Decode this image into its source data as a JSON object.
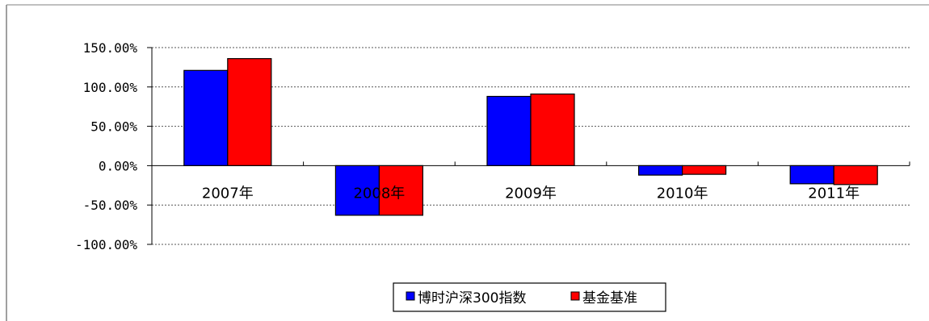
{
  "chart_data": {
    "type": "bar",
    "categories": [
      "2007年",
      "2008年",
      "2009年",
      "2010年",
      "2011年"
    ],
    "series": [
      {
        "name": "博时沪深300指数",
        "color": "#0000ff",
        "values": [
          121,
          -63,
          88,
          -12,
          -23
        ]
      },
      {
        "name": "基金基准",
        "color": "#ff0000",
        "values": [
          136,
          -63,
          91,
          -11,
          -24
        ]
      }
    ],
    "y_ticks": [
      150,
      100,
      50,
      0,
      -50,
      -100
    ],
    "y_tick_labels": [
      "150.00%",
      "100.00%",
      "50.00%",
      "0.00%",
      "-50.00%",
      "-100.00%"
    ],
    "ylim": [
      -100,
      150
    ],
    "grid": true,
    "legend_position": "bottom"
  }
}
